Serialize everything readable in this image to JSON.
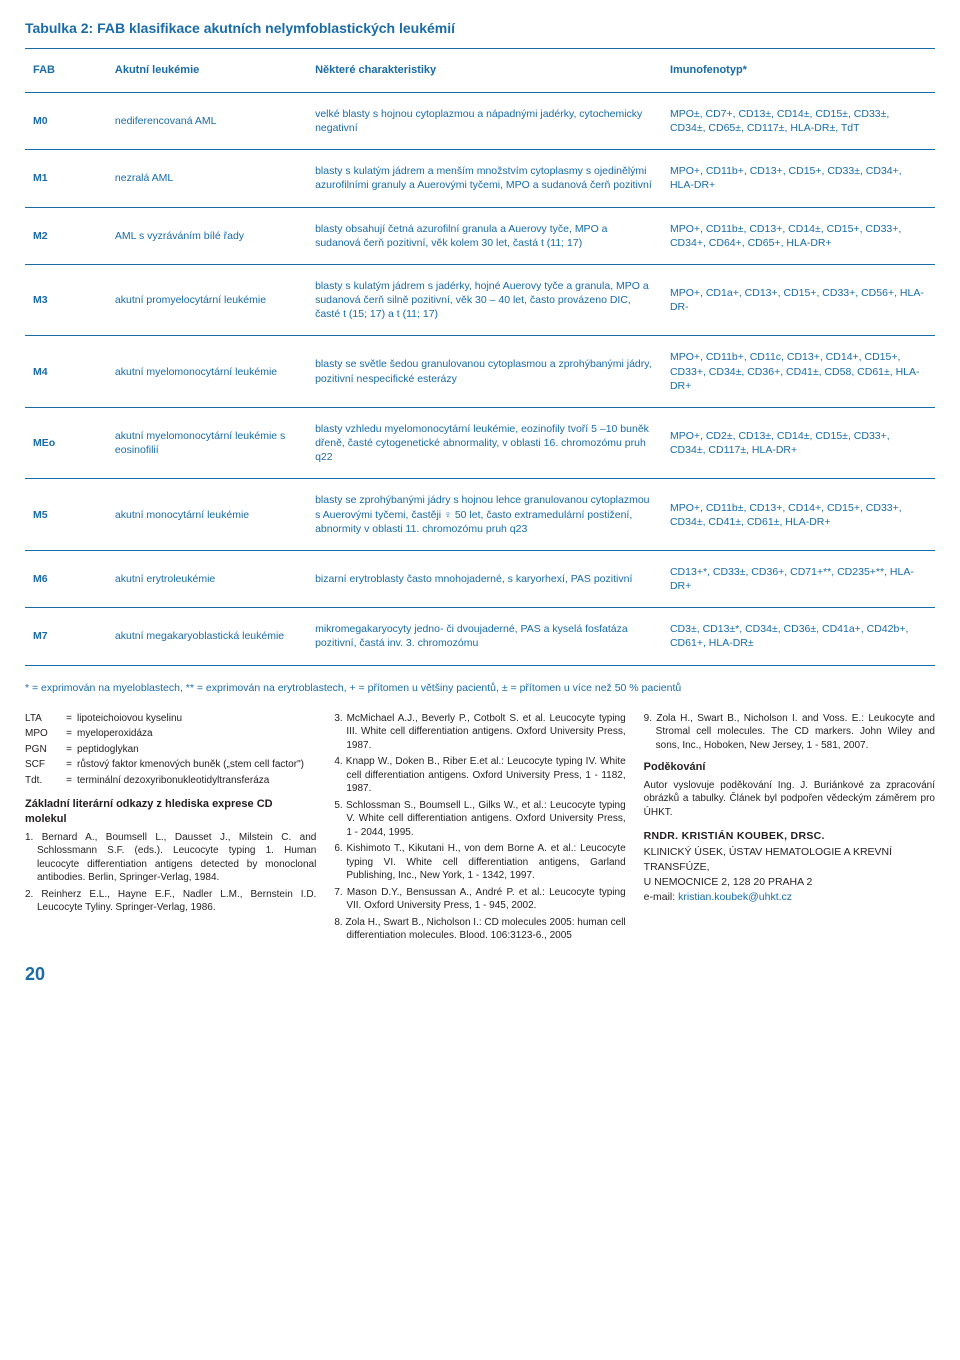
{
  "colors": {
    "accent": "#1a6ba8",
    "text": "#231f20",
    "background": "#ffffff"
  },
  "table": {
    "title": "Tabulka 2: FAB klasifikace akutních nelymfoblastických leukémií",
    "columns": [
      "FAB",
      "Akutní leukémie",
      "Některé charakteristiky",
      "Imunofenotyp*"
    ],
    "col_widths_pct": [
      9,
      22,
      39,
      30
    ],
    "font_size_pt": 10.5,
    "header_font_size_pt": 11,
    "rows": [
      {
        "fab": "M0",
        "name": "nediferencovaná AML",
        "char": "velké blasty s hojnou cytoplazmou a nápadnými jadérky, cytochemicky negativní",
        "imm": "MPO±, CD7+, CD13±, CD14±, CD15±, CD33±, CD34±, CD65±, CD117±, HLA-DR±, TdT"
      },
      {
        "fab": "M1",
        "name": "nezralá AML",
        "char": "blasty s kulatým jádrem a menším množstvím cytoplasmy s ojedinělými azurofilními granuly a Auerovými tyčemi, MPO a sudanová čerň pozitivní",
        "imm": "MPO+, CD11b+, CD13+, CD15+, CD33±, CD34+, HLA-DR+"
      },
      {
        "fab": "M2",
        "name": "AML s vyzráváním bílé řady",
        "char": "blasty obsahují četná azurofilní granula a Auerovy tyče, MPO a sudanová čerň pozitivní, věk kolem 30 let, častá t (11; 17)",
        "imm": "MPO+, CD11b±, CD13+, CD14±, CD15+, CD33+, CD34+, CD64+, CD65+, HLA-DR+"
      },
      {
        "fab": "M3",
        "name": "akutní promyelocytární leukémie",
        "char": "blasty s kulatým jádrem s jadérky, hojné Auerovy tyče a granula, MPO a sudanová čerň silně pozitivní, věk 30 – 40 let, často provázeno DIC, časté t (15; 17) a t (11; 17)",
        "imm": "MPO+, CD1a+, CD13+, CD15+, CD33+, CD56+, HLA-DR-"
      },
      {
        "fab": "M4",
        "name": "akutní myelomonocytární leukémie",
        "char": "blasty se světle šedou granulovanou cytoplasmou a zprohýbanými jádry, pozitivní nespecifické esterázy",
        "imm": "MPO+, CD11b+, CD11c, CD13+, CD14+, CD15+, CD33+, CD34±, CD36+, CD41±, CD58, CD61±, HLA-DR+"
      },
      {
        "fab": "MEo",
        "name": "akutní myelomonocytární leukémie s eosinofilií",
        "char": "blasty vzhledu myelomonocytární leukémie, eozinofily tvoří 5 –10 buněk dřeně, časté cytogenetické abnormality, v oblasti 16. chromozómu pruh q22",
        "imm": "MPO+, CD2±, CD13±, CD14±, CD15±, CD33+, CD34±, CD117±, HLA-DR+"
      },
      {
        "fab": "M5",
        "name": "akutní monocytární leukémie",
        "char": "blasty se zprohýbanými jádry s hojnou lehce granulovanou cytoplazmou s Auerovými tyčemi, častěji ♀ 50 let, často extramedulární postižení, abnormity v oblasti 11. chromozómu pruh q23",
        "imm": "MPO+, CD11b±, CD13+, CD14+, CD15+, CD33+, CD34±, CD41±, CD61±, HLA-DR+"
      },
      {
        "fab": "M6",
        "name": "akutní erytroleukémie",
        "char": "bizarní erytroblasty často mnohojaderné, s karyorhexí, PAS pozitivní",
        "imm": "CD13+*, CD33±, CD36+, CD71+**, CD235+**, HLA-DR+"
      },
      {
        "fab": "M7",
        "name": "akutní megakaryoblastická leukémie",
        "char": "mikromegakaryocyty jedno- či dvoujaderné, PAS a kyselá fosfatáza pozitivní, častá inv. 3. chromozómu",
        "imm": "CD3±, CD13±*, CD34±, CD36±, CD41a+, CD42b+, CD61+, HLA-DR±"
      }
    ],
    "footnote": "* = exprimován na myeloblastech, ** = exprimován na erytroblastech, + = přítomen u většiny pacientů, ± = přítomen u více než 50 % pacientů"
  },
  "abbreviations": [
    {
      "k": "LTA",
      "v": "lipoteichoiovou kyselinu"
    },
    {
      "k": "MPO",
      "v": "myeloperoxidáza"
    },
    {
      "k": "PGN",
      "v": "peptidoglykan"
    },
    {
      "k": "SCF",
      "v": "růstový faktor kmenových buněk („stem cell factor\")"
    },
    {
      "k": "Tdt.",
      "v": "terminální dezoxyribonukleotidyltransferáza"
    }
  ],
  "refs_title": "Základní literární odkazy z hlediska exprese CD molekul",
  "references": [
    "1. Bernard A., Boumsell L., Dausset J., Milstein C. and Schlossmann S.F. (eds.). Leucocyte typing 1. Human leucocyte differentiation antigens detected by monoclonal antibodies. Berlin, Springer-Verlag, 1984.",
    "2. Reinherz E.L., Hayne E.F., Nadler L.M., Bernstein I.D. Leucocyte Tyliny. Springer-Verlag, 1986.",
    "3. McMichael A.J., Beverly P., Cotbolt S. et al. Leucocyte typing III. White cell differentiation antigens. Oxford University Press, 1987.",
    "4. Knapp W., Doken B., Riber E.et al.: Leucocyte typing IV. White cell differentiation antigens. Oxford University Press, 1 - 1182, 1987.",
    "5. Schlossman S., Boumsell L., Gilks W., et al.: Leucocyte typing V. White cell differentiation antigens. Oxford University Press, 1 - 2044, 1995.",
    "6. Kishimoto T., Kikutani H., von dem Borne A. et al.: Leucocyte typing VI. White cell differentiation antigens, Garland Publishing, Inc., New York, 1 - 1342, 1997.",
    "7. Mason D.Y., Bensussan A., André P. et al.: Leucocyte typing VII. Oxford University Press, 1 - 945, 2002.",
    "8. Zola H., Swart B., Nicholson I.: CD molecules 2005: human cell differentiation molecules. Blood. 106:3123-6., 2005",
    "9. Zola H., Swart B., Nicholson I. and Voss. E.: Leukocyte and Stromal cell molecules. The CD markers. John Wiley and sons, Inc., Hoboken, New Jersey, 1 - 581, 2007."
  ],
  "ack": {
    "title": "Poděkování",
    "body": "Autor vyslovuje poděkování Ing. J. Buriánkové za zpracování obrázků a tabulky. Článek byl podpořen vědeckým záměrem pro ÚHKT."
  },
  "author": {
    "name": "RNDR. KRISTIÁN KOUBEK, DRSC.",
    "affiliation": "KLINICKÝ ÚSEK, ÚSTAV HEMATOLOGIE A KREVNÍ TRANSFÚZE,",
    "address": "U NEMOCNICE 2, 128 20 PRAHA 2",
    "email_label": "e-mail: ",
    "email": "kristian.koubek@uhkt.cz"
  },
  "page_number": "20"
}
